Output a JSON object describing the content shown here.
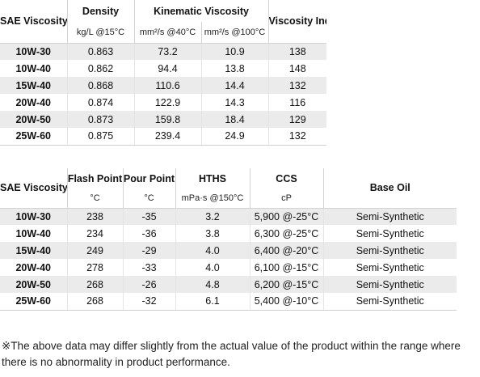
{
  "table1": {
    "headers": {
      "grade": "SAE Viscosity Grade",
      "density": "Density",
      "kinematic": "Kinematic Viscosity",
      "vi": "Viscosity Index"
    },
    "units": {
      "density": "kg/L @15°C",
      "kv40": "mm²/s @40°C",
      "kv100": "mm²/s @100°C"
    },
    "rows": [
      [
        "10W-30",
        "0.863",
        "73.2",
        "10.9",
        "138"
      ],
      [
        "10W-40",
        "0.862",
        "94.4",
        "13.8",
        "148"
      ],
      [
        "15W-40",
        "0.868",
        "110.6",
        "14.4",
        "132"
      ],
      [
        "20W-40",
        "0.874",
        "122.9",
        "14.3",
        "116"
      ],
      [
        "20W-50",
        "0.873",
        "159.8",
        "18.4",
        "129"
      ],
      [
        "25W-60",
        "0.875",
        "239.4",
        "24.9",
        "132"
      ]
    ]
  },
  "table2": {
    "headers": {
      "grade": "SAE Viscosity Grade",
      "flash": "Flash Point",
      "pour": "Pour Point",
      "hths": "HTHS",
      "ccs": "CCS",
      "base_oil": "Base Oil"
    },
    "units": {
      "flash": "°C",
      "pour": "°C",
      "hths": "mPa·s @150°C",
      "ccs": "cP"
    },
    "rows": [
      [
        "10W-30",
        "238",
        "-35",
        "3.2",
        "5,900 @-25°C",
        "Semi-Synthetic"
      ],
      [
        "10W-40",
        "234",
        "-36",
        "3.8",
        "6,300 @-25°C",
        "Semi-Synthetic"
      ],
      [
        "15W-40",
        "249",
        "-29",
        "4.0",
        "6,400 @-20°C",
        "Semi-Synthetic"
      ],
      [
        "20W-40",
        "278",
        "-33",
        "4.0",
        "6,100 @-15°C",
        "Semi-Synthetic"
      ],
      [
        "20W-50",
        "268",
        "-26",
        "4.8",
        "6,200 @-15°C",
        "Semi-Synthetic"
      ],
      [
        "25W-60",
        "268",
        "-32",
        "6.1",
        "5,400 @-10°C",
        "Semi-Synthetic"
      ]
    ]
  },
  "footnote": "※The above data may differ slightly from the actual value of the product within the range where there is no abnormality in product performance."
}
